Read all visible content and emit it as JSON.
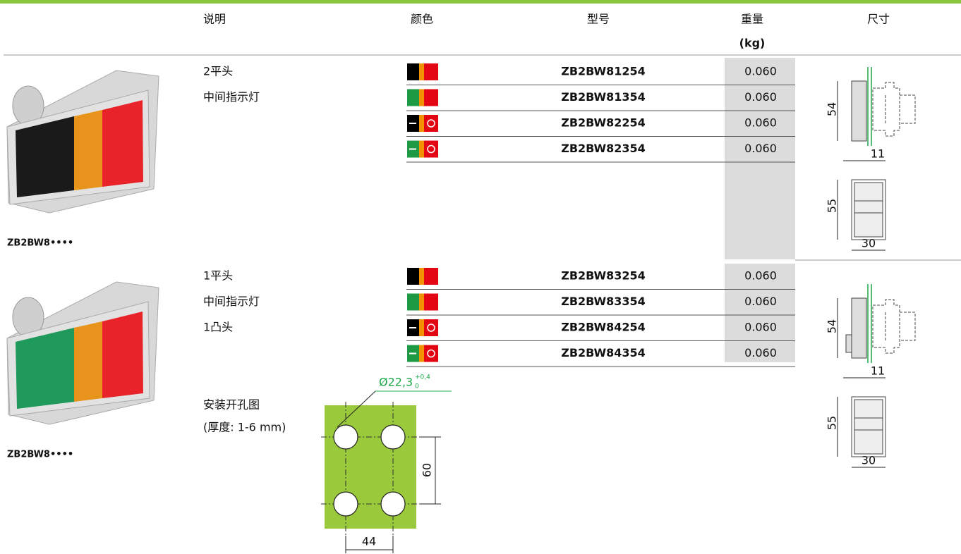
{
  "header": {
    "description": "说明",
    "color": "颜色",
    "model": "型号",
    "weight": "重量",
    "weight_unit": "(kg)",
    "dimensions": "尺寸"
  },
  "groups": [
    {
      "caption": "ZB2BW8••••",
      "description": [
        "2平头",
        "中间指示灯"
      ],
      "rows": [
        {
          "model": "ZB2BW81254",
          "weight": "0.060"
        },
        {
          "model": "ZB2BW81354",
          "weight": "0.060"
        },
        {
          "model": "ZB2BW82254",
          "weight": "0.060"
        },
        {
          "model": "ZB2BW82354",
          "weight": "0.060"
        }
      ],
      "dimensions": {
        "depth": "54",
        "offset": "11",
        "height": "55",
        "width": "30"
      }
    },
    {
      "caption": "ZB2BW8••••",
      "description": [
        "1平头",
        "中间指示灯",
        "1凸头"
      ],
      "rows": [
        {
          "model": "ZB2BW83254",
          "weight": "0.060"
        },
        {
          "model": "ZB2BW83354",
          "weight": "0.060"
        },
        {
          "model": "ZB2BW84254",
          "weight": "0.060"
        },
        {
          "model": "ZB2BW84354",
          "weight": "0.060"
        }
      ],
      "dimensions": {
        "depth": "54",
        "offset": "11",
        "height": "55",
        "width": "30"
      }
    }
  ],
  "mounting": {
    "title": "安装开孔图",
    "thickness": "(厚度: 1-6 mm)",
    "diameter": "Ø22,3",
    "tolerance_upper": "+0,4",
    "tolerance_lower": "0",
    "vertical_spacing": "60",
    "horizontal_spacing": "44"
  }
}
